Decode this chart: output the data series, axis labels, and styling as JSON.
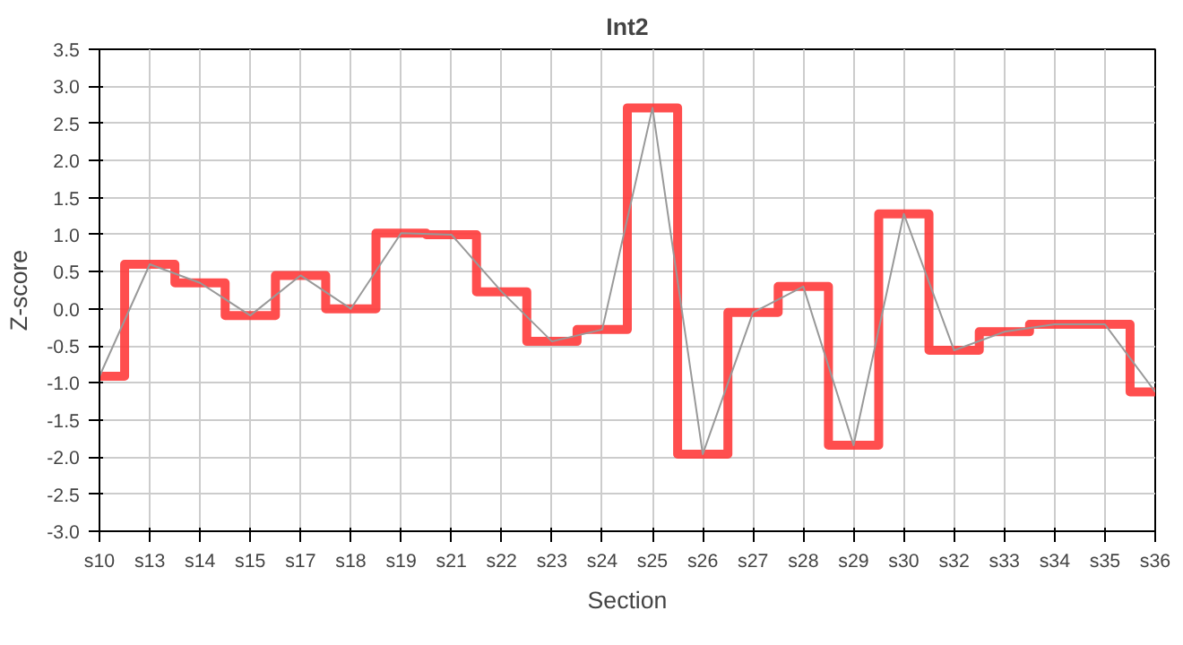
{
  "chart_data": {
    "type": "step",
    "title": "Int2",
    "xlabel": "Section",
    "ylabel": "Z-score",
    "categories": [
      "s10",
      "s13",
      "s14",
      "s15",
      "s17",
      "s18",
      "s19",
      "s21",
      "s22",
      "s23",
      "s24",
      "s25",
      "s26",
      "s27",
      "s28",
      "s29",
      "s30",
      "s32",
      "s33",
      "s34",
      "s35",
      "s36"
    ],
    "series": [
      {
        "color": "#ff3b3b",
        "values": [
          -0.91,
          0.6,
          0.35,
          -0.09,
          0.45,
          0.0,
          1.02,
          1.0,
          0.23,
          -0.44,
          -0.28,
          2.71,
          -1.96,
          -0.05,
          0.3,
          -1.84,
          1.28,
          -0.56,
          -0.31,
          -0.21,
          -0.21,
          -1.12
        ]
      },
      {
        "type": "line",
        "color": "#999999",
        "values": [
          -0.91,
          0.6,
          0.35,
          -0.09,
          0.45,
          0.0,
          1.02,
          1.0,
          0.23,
          -0.44,
          -0.28,
          2.71,
          -1.96,
          -0.05,
          0.3,
          -1.84,
          1.28,
          -0.56,
          -0.31,
          -0.21,
          -0.21,
          -1.12
        ]
      }
    ],
    "ylim": [
      -3.0,
      3.5
    ],
    "yticks": [
      {
        "value": -3.0,
        "label": "-3.0"
      },
      {
        "value": -2.5,
        "label": "-2.5"
      },
      {
        "value": -2.0,
        "label": "-2.0"
      },
      {
        "value": -1.5,
        "label": "-1.5"
      },
      {
        "value": -1.0,
        "label": "-1.0"
      },
      {
        "value": -0.5,
        "label": "-0.5"
      },
      {
        "value": 0.0,
        "label": "0.0"
      },
      {
        "value": 0.5,
        "label": "0.5"
      },
      {
        "value": 1.0,
        "label": "1.0"
      },
      {
        "value": 1.5,
        "label": "1.5"
      },
      {
        "value": 2.0,
        "label": "2.0"
      },
      {
        "value": 2.5,
        "label": "2.5"
      },
      {
        "value": 3.0,
        "label": "3.0"
      },
      {
        "value": 3.5,
        "label": "3.5"
      }
    ],
    "grid": true
  }
}
